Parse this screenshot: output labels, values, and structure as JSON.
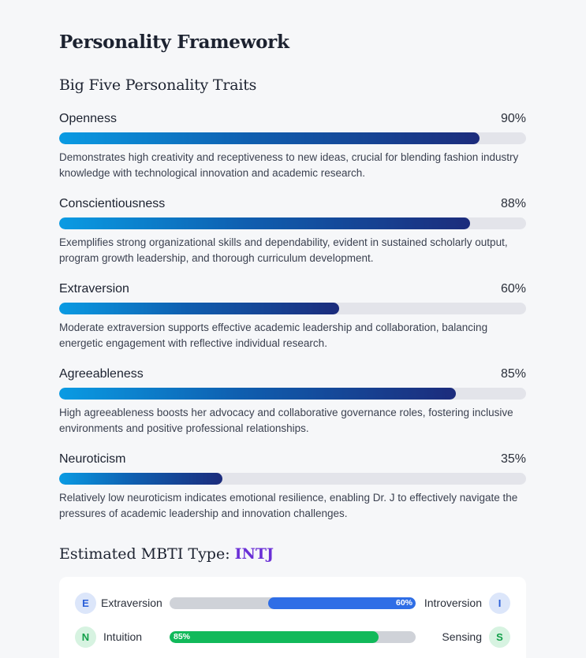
{
  "page": {
    "title": "Personality Framework",
    "big_five_heading": "Big Five Personality Traits"
  },
  "traits": [
    {
      "name": "Openness",
      "percent_label": "90%",
      "value": 90,
      "description": "Demonstrates high creativity and receptiveness to new ideas, crucial for blending fashion industry knowledge with technological innovation and academic research."
    },
    {
      "name": "Conscientiousness",
      "percent_label": "88%",
      "value": 88,
      "description": "Exemplifies strong organizational skills and dependability, evident in sustained scholarly output, program growth leadership, and thorough curriculum development."
    },
    {
      "name": "Extraversion",
      "percent_label": "60%",
      "value": 60,
      "description": "Moderate extraversion supports effective academic leadership and collaboration, balancing energetic engagement with reflective individual research."
    },
    {
      "name": "Agreeableness",
      "percent_label": "85%",
      "value": 85,
      "description": "High agreeableness boosts her advocacy and collaborative governance roles, fostering inclusive environments and positive professional relationships."
    },
    {
      "name": "Neuroticism",
      "percent_label": "35%",
      "value": 35,
      "description": "Relatively low neuroticism indicates emotional resilience, enabling Dr. J to effectively navigate the pressures of academic leadership and innovation challenges."
    }
  ],
  "mbti": {
    "heading_prefix": "Estimated MBTI Type: ",
    "type": "INTJ",
    "rows": [
      {
        "left_letter": "E",
        "left_label": "Extraversion",
        "right_letter": "I",
        "right_label": "Introversion",
        "bar_label": "60%",
        "value": 60,
        "fill_side": "right",
        "color": "#2f6ee6"
      },
      {
        "left_letter": "N",
        "left_label": "Intuition",
        "right_letter": "S",
        "right_label": "Sensing",
        "bar_label": "85%",
        "value": 85,
        "fill_side": "left",
        "color": "#11b95a"
      }
    ]
  },
  "colors": {
    "bar_gradient_start": "#0a9be3",
    "bar_gradient_end": "#1c2c7c",
    "bar_track": "#e3e4ea",
    "mbti_type": "#6a2fd6"
  }
}
